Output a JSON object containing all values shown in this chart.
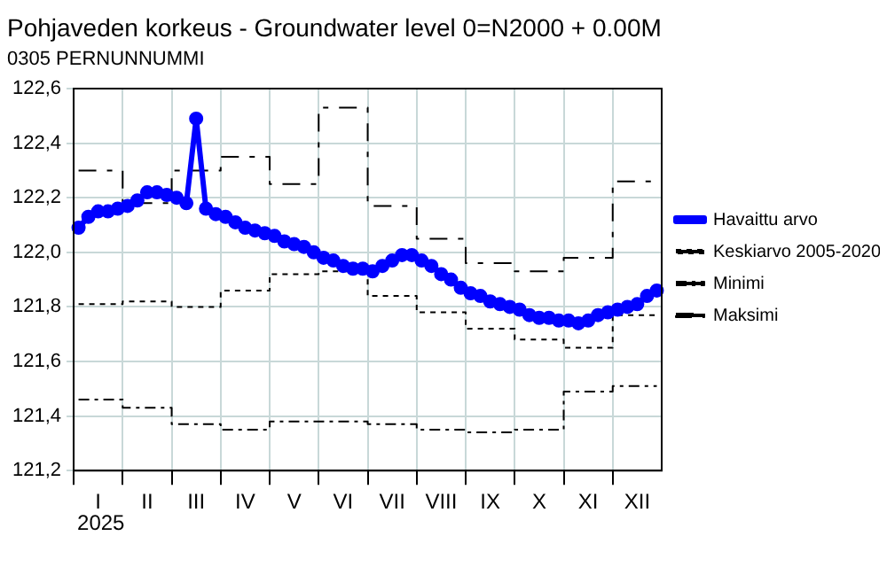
{
  "chart_data": {
    "type": "line",
    "title": "Pohjaveden korkeus - Groundwater level 0=N2000 + 0.00M",
    "subtitle": "0305 PERNUNNUMMI",
    "annotations": [
      "2025"
    ],
    "categories": [
      null,
      null,
      "I",
      null,
      null,
      null,
      null,
      "II",
      null,
      null,
      null,
      null,
      "III",
      null,
      null,
      null,
      null,
      "IV",
      null,
      null,
      null,
      null,
      "V",
      null,
      null,
      null,
      null,
      "VI",
      null,
      null,
      null,
      null,
      "VII",
      null,
      null,
      null,
      null,
      "VIII",
      null,
      null,
      null,
      null,
      "IX",
      null,
      null,
      null,
      null,
      "X",
      null,
      null,
      null,
      null,
      "XI",
      null,
      null,
      null,
      null,
      "XII",
      null,
      null
    ],
    "ylim": [
      121.2,
      122.6
    ],
    "yticks": [
      {
        "value": 121.2,
        "label": "121,2"
      },
      {
        "value": 121.4,
        "label": "121,4"
      },
      {
        "value": 121.6,
        "label": "121,6"
      },
      {
        "value": 121.8,
        "label": "121,8"
      },
      {
        "value": 122.0,
        "label": "122,0"
      },
      {
        "value": 122.2,
        "label": "122,2"
      },
      {
        "value": 122.4,
        "label": "122,4"
      },
      {
        "value": 122.6,
        "label": "122,6"
      }
    ],
    "grid": true,
    "legend": "right",
    "series": [
      {
        "name": "Havaittu arvo",
        "color": "#0000ff",
        "marker": "circle",
        "line_style": "solid",
        "values": [
          122.09,
          122.13,
          122.15,
          122.15,
          122.16,
          122.17,
          122.19,
          122.22,
          122.22,
          122.21,
          122.2,
          122.18,
          122.49,
          122.16,
          122.14,
          122.13,
          122.11,
          122.09,
          122.08,
          122.07,
          122.06,
          122.04,
          122.03,
          122.02,
          122.0,
          121.98,
          121.97,
          121.95,
          121.94,
          121.94,
          121.93,
          121.95,
          121.97,
          121.99,
          121.99,
          121.97,
          121.95,
          121.92,
          121.9,
          121.87,
          121.85,
          121.84,
          121.82,
          121.81,
          121.8,
          121.79,
          121.77,
          121.76,
          121.76,
          121.75,
          121.75,
          121.74,
          121.75,
          121.77,
          121.78,
          121.79,
          121.8,
          121.81,
          121.84,
          121.86
        ]
      },
      {
        "name": "Keskiarvo 2005-2020",
        "type": "step",
        "color": "#000000",
        "marker": "none",
        "line_style": "dotted",
        "values": [
          121.81,
          121.81,
          121.81,
          121.81,
          121.81,
          121.82,
          121.82,
          121.82,
          121.82,
          121.82,
          121.8,
          121.8,
          121.8,
          121.8,
          121.8,
          121.86,
          121.86,
          121.86,
          121.86,
          121.86,
          121.92,
          121.92,
          121.92,
          121.92,
          121.92,
          121.93,
          121.93,
          121.93,
          121.93,
          121.93,
          121.84,
          121.84,
          121.84,
          121.84,
          121.84,
          121.78,
          121.78,
          121.78,
          121.78,
          121.78,
          121.72,
          121.72,
          121.72,
          121.72,
          121.72,
          121.68,
          121.68,
          121.68,
          121.68,
          121.68,
          121.65,
          121.65,
          121.65,
          121.65,
          121.65,
          121.77,
          121.77,
          121.77,
          121.77,
          121.77
        ]
      },
      {
        "name": "Minimi",
        "type": "step",
        "color": "#000000",
        "marker": "none",
        "line_style": "dashed",
        "values": [
          121.46,
          121.46,
          121.46,
          121.46,
          121.46,
          121.43,
          121.43,
          121.43,
          121.43,
          121.43,
          121.37,
          121.37,
          121.37,
          121.37,
          121.37,
          121.35,
          121.35,
          121.35,
          121.35,
          121.35,
          121.38,
          121.38,
          121.38,
          121.38,
          121.38,
          121.38,
          121.38,
          121.38,
          121.38,
          121.38,
          121.37,
          121.37,
          121.37,
          121.37,
          121.37,
          121.35,
          121.35,
          121.35,
          121.35,
          121.35,
          121.34,
          121.34,
          121.34,
          121.34,
          121.34,
          121.35,
          121.35,
          121.35,
          121.35,
          121.35,
          121.49,
          121.49,
          121.49,
          121.49,
          121.49,
          121.51,
          121.51,
          121.51,
          121.51,
          121.51
        ]
      },
      {
        "name": "Maksimi",
        "type": "step",
        "color": "#000000",
        "marker": "none",
        "line_style": "dashed",
        "values": [
          122.3,
          122.3,
          122.3,
          122.3,
          122.3,
          122.18,
          122.18,
          122.18,
          122.18,
          122.18,
          122.3,
          122.3,
          122.3,
          122.3,
          122.3,
          122.35,
          122.35,
          122.35,
          122.35,
          122.35,
          122.25,
          122.25,
          122.25,
          122.25,
          122.25,
          122.53,
          122.53,
          122.53,
          122.53,
          122.53,
          122.17,
          122.17,
          122.17,
          122.17,
          122.17,
          122.05,
          122.05,
          122.05,
          122.05,
          122.05,
          121.96,
          121.96,
          121.96,
          121.96,
          121.96,
          121.93,
          121.93,
          121.93,
          121.93,
          121.93,
          121.98,
          121.98,
          121.98,
          121.98,
          121.98,
          122.26,
          122.26,
          122.26,
          122.26,
          122.26
        ]
      }
    ]
  }
}
